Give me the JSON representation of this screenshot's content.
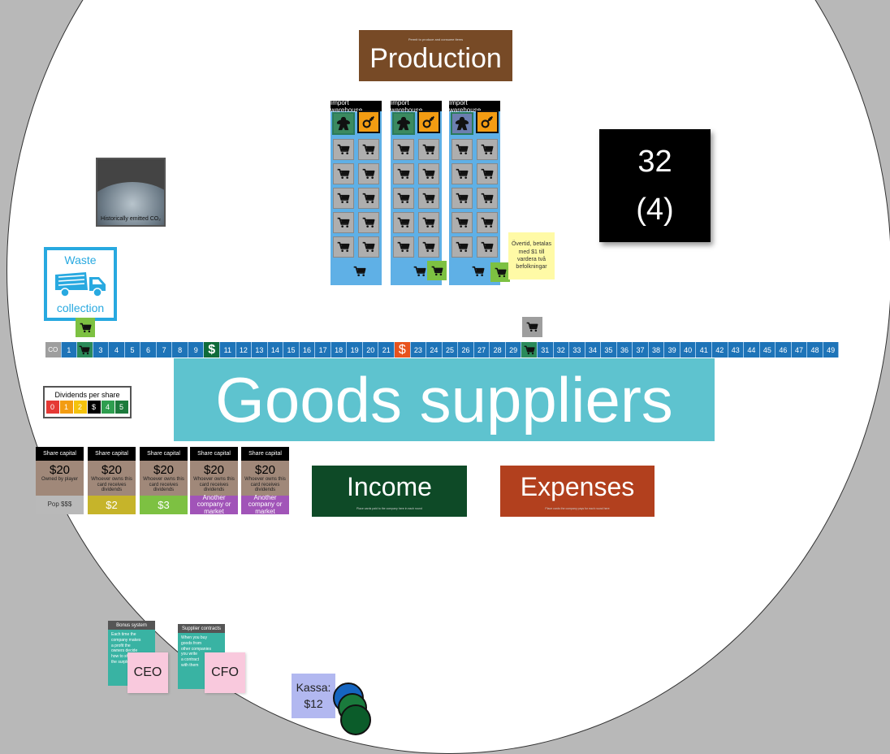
{
  "production": {
    "title": "Production",
    "subtitle": "Permit to produce and consume items"
  },
  "warehouses": [
    {
      "title": "Import warehouse"
    },
    {
      "title": "Import warehouse"
    },
    {
      "title": "Import warehouse"
    }
  ],
  "counter": {
    "value": "32",
    "sub": "(4)"
  },
  "sticky_note": {
    "text": "Övertid, betalas med $1 till vardera två befolkningar"
  },
  "earth_card": {
    "label": "Historically emitted CO₂"
  },
  "waste": {
    "line1": "Waste",
    "line2": "collection"
  },
  "track": {
    "start": "CO",
    "cells": [
      "1",
      "cart",
      "3",
      "4",
      "5",
      "6",
      "7",
      "8",
      "9",
      "$",
      "11",
      "12",
      "13",
      "14",
      "15",
      "16",
      "17",
      "18",
      "19",
      "20",
      "21",
      "$",
      "23",
      "24",
      "25",
      "26",
      "27",
      "28",
      "29",
      "cart",
      "31",
      "32",
      "33",
      "34",
      "35",
      "36",
      "37",
      "38",
      "39",
      "40",
      "41",
      "42",
      "43",
      "44",
      "45",
      "46",
      "47",
      "48",
      "49"
    ]
  },
  "company_name": "Goods suppliers",
  "dividends": {
    "title": "Dividends per share",
    "steps": [
      "0",
      "1",
      "2",
      "$",
      "4",
      "5"
    ],
    "colors": [
      "#e53935",
      "#f39c12",
      "#f4c20d",
      "#000000",
      "#2e9e4f",
      "#1c7a3c"
    ]
  },
  "share_cards": [
    {
      "header": "Share capital",
      "price": "$20",
      "note": "Owned by player",
      "footer": "Pop $$$",
      "footer_color": "#b9b9b9",
      "footer_text_color": "#333333"
    },
    {
      "header": "Share capital",
      "price": "$20",
      "note": "Whoever owns this card receives dividends",
      "footer": "$2",
      "footer_color": "#c6b42a",
      "footer_text_color": "#ffffff"
    },
    {
      "header": "Share capital",
      "price": "$20",
      "note": "Whoever owns this card receives dividends",
      "footer": "$3",
      "footer_color": "#7dc142",
      "footer_text_color": "#ffffff"
    },
    {
      "header": "Share capital",
      "price": "$20",
      "note": "Whoever owns this card receives dividends",
      "footer": "Another company or market",
      "footer_color": "#a154b8",
      "footer_text_color": "#ffffff"
    },
    {
      "header": "Share capital",
      "price": "$20",
      "note": "Whoever owns this card receives dividends",
      "footer": "Another company or market",
      "footer_color": "#a154b8",
      "footer_text_color": "#ffffff"
    }
  ],
  "income": {
    "title": "Income",
    "sub": "Place cards paid to the company here in each round"
  },
  "expenses": {
    "title": "Expenses",
    "sub": "Place cards the company pays for each round here"
  },
  "roles": [
    {
      "title": "Bonus system",
      "lines": [
        "Each time the",
        "company makes",
        "a profit the",
        "owners decide",
        "how to share",
        "the surplus"
      ],
      "badge": "CEO"
    },
    {
      "title": "Supplier contracts",
      "lines": [
        "When you buy",
        "goods from",
        "other companies",
        "you write",
        "a contract",
        "with them"
      ],
      "badge": "CFO"
    }
  ],
  "kassa": {
    "label": "Kassa:",
    "value": "$12"
  }
}
